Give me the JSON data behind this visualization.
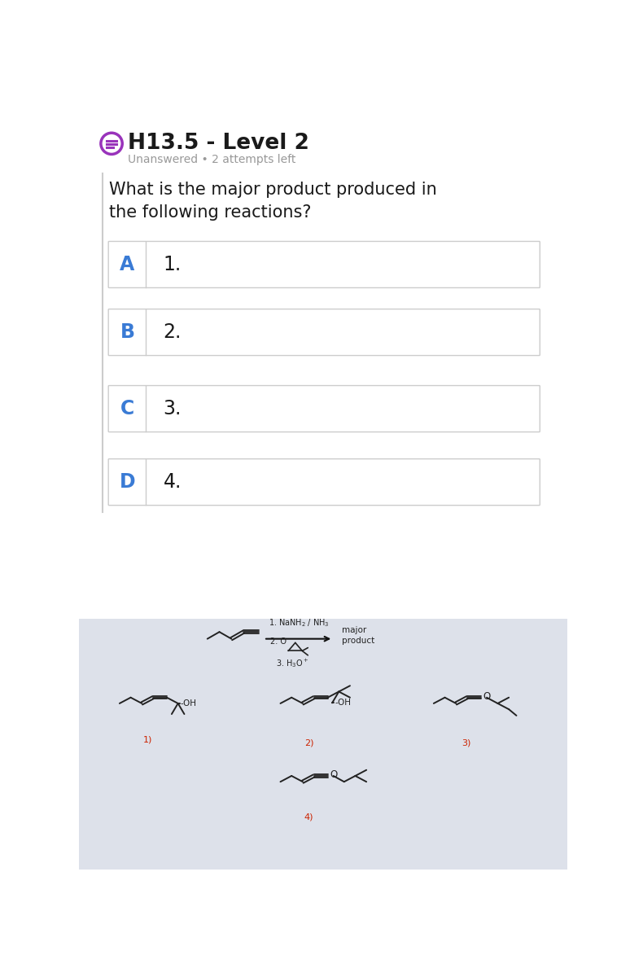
{
  "title": "H13.5 - Level 2",
  "subtitle": "Unanswered • 2 attempts left",
  "question": "What is the major product produced in\nthe following reactions?",
  "options": [
    "A",
    "B",
    "C",
    "D"
  ],
  "option_numbers": [
    "1.",
    "2.",
    "3.",
    "4."
  ],
  "bg_color": "#ffffff",
  "option_bg": "#ffffff",
  "option_border": "#cccccc",
  "option_label_color": "#3a7bd5",
  "bottom_bg": "#dde1ea",
  "title_color": "#1a1a1a",
  "subtitle_color": "#999999",
  "question_color": "#1a1a1a",
  "number_color": "#1a1a1a",
  "product_label_color": "#cc2200",
  "mol_color": "#222222",
  "icon_color": "#9933bb",
  "arrow_color": "#111111",
  "cond_color": "#222222"
}
